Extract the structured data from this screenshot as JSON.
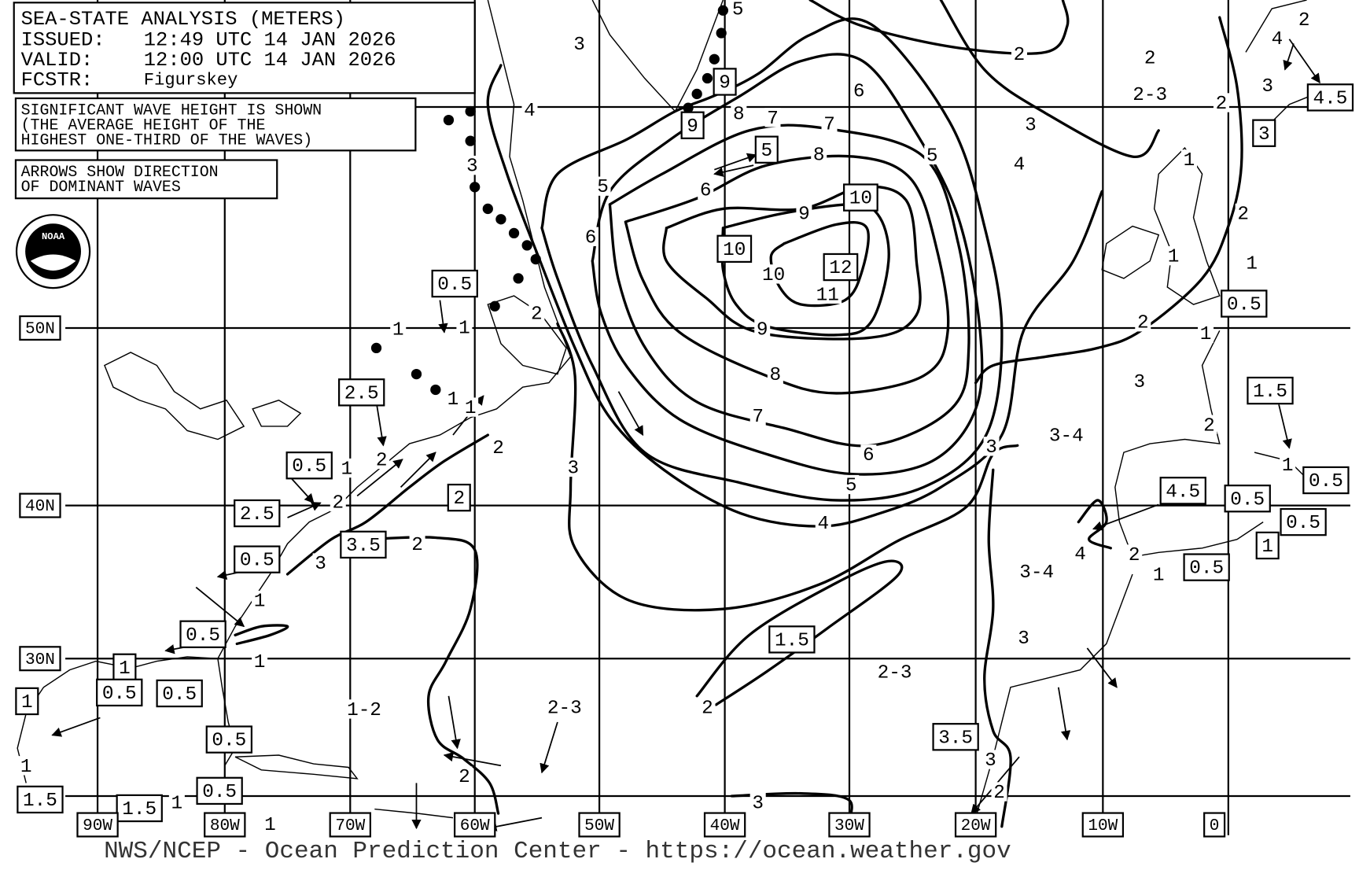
{
  "header": {
    "title": "SEA-STATE ANALYSIS (METERS)",
    "issued_label": "ISSUED:",
    "issued": "12:49 UTC 14 JAN 2026",
    "valid_label": "VALID:",
    "valid": "12:00 UTC 14 JAN 2026",
    "forecaster_label": "FCSTR:",
    "forecaster": "Figurskey"
  },
  "notes": [
    "SIGNIFICANT WAVE HEIGHT IS SHOWN",
    "(THE AVERAGE HEIGHT OF THE",
    "HIGHEST ONE-THIRD OF THE WAVES)",
    "ARROWS SHOW DIRECTION",
    "OF DOMINANT WAVES"
  ],
  "logo": {
    "label": "NOAA"
  },
  "latitude_labels": [
    "50N",
    "40N",
    "30N"
  ],
  "longitude_labels": [
    "90W",
    "80W",
    "70W",
    "60W",
    "50W",
    "40W",
    "30W",
    "20W",
    "10W",
    "0"
  ],
  "contour_labels": [
    "3",
    "5",
    "4",
    "3",
    "5",
    "6",
    "8",
    "7",
    "7",
    "6",
    "8",
    "6",
    "9",
    "10",
    "11",
    "9",
    "8",
    "7",
    "6",
    "5",
    "4",
    "3",
    "5",
    "3",
    "4",
    "2",
    "2",
    "2",
    "3",
    "1",
    "2",
    "1",
    "1",
    "2",
    "1",
    "3",
    "2",
    "1",
    "3",
    "2",
    "1",
    "4",
    "2",
    "1",
    "1",
    "1",
    "1",
    "2",
    "2",
    "1",
    "2",
    "3",
    "2",
    "1",
    "1",
    "1",
    "1",
    "1",
    "2",
    "3",
    "3",
    "2",
    "2",
    "3",
    "4",
    "2"
  ],
  "range_labels": [
    "2-3",
    "3-4",
    "3-4",
    "2-3",
    "2-3",
    "1-2"
  ],
  "boxed_labels": [
    "9",
    "9",
    "5",
    "10",
    "10",
    "12",
    "0.5",
    "2.5",
    "0.5",
    "2",
    "2.5",
    "3.5",
    "0.5",
    "0.5",
    "1",
    "1",
    "0.5",
    "0.5",
    "0.5",
    "0.5",
    "1.5",
    "1.5",
    "1.5",
    "3.5",
    "4.5",
    "0.5",
    "0.5",
    "1",
    "0.5",
    "0.5",
    "1.5",
    "0.5",
    "4.5",
    "3"
  ],
  "footer": "NWS/NCEP - Ocean Prediction Center - https://ocean.weather.gov"
}
